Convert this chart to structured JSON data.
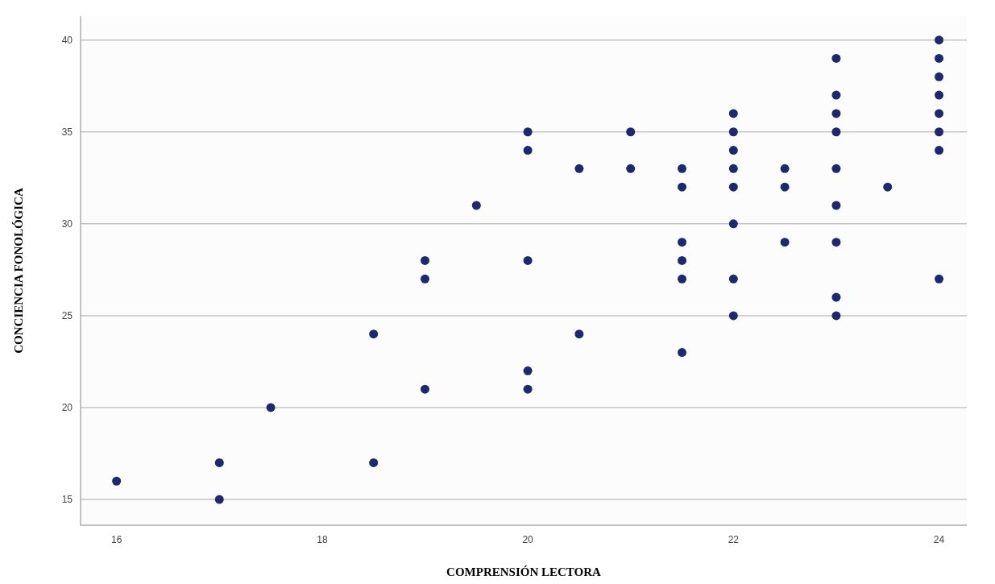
{
  "chart_data": {
    "type": "scatter",
    "xlabel": "COMPRENSIÓN LECTORA",
    "ylabel": "CONCIENCIA FONOLÓGICA",
    "x": [
      16,
      17,
      17,
      17.5,
      18.5,
      18.5,
      19,
      19,
      19,
      19.5,
      20,
      20,
      20,
      20,
      20,
      20.5,
      20.5,
      21,
      21,
      21.5,
      21.5,
      21.5,
      21.5,
      21.5,
      21.5,
      22,
      22,
      22,
      22,
      22,
      22,
      22,
      22,
      22.5,
      22.5,
      22.5,
      23,
      23,
      23,
      23,
      23,
      23,
      23,
      23,
      23,
      23.5,
      24,
      24,
      24,
      24,
      24,
      24,
      24,
      24
    ],
    "series": [
      {
        "color": "#1a2a6c",
        "values": [
          16,
          17,
          15,
          20,
          24,
          17,
          28,
          27,
          21,
          31,
          35,
          34,
          28,
          22,
          21,
          33,
          24,
          35,
          33,
          33,
          32,
          29,
          28,
          27,
          23,
          36,
          35,
          34,
          33,
          32,
          30,
          27,
          25,
          33,
          32,
          29,
          39,
          37,
          36,
          35,
          33,
          31,
          29,
          26,
          25,
          32,
          40,
          39,
          38,
          37,
          36,
          35,
          34,
          27
        ]
      }
    ],
    "marker": "circle",
    "grid": "y",
    "xlim": [
      15.65,
      24.27
    ],
    "xticks": [
      16,
      18,
      20,
      22,
      24
    ],
    "ylim": [
      13.6,
      41.3
    ],
    "yticks": [
      15,
      20,
      25,
      30,
      35,
      40
    ]
  }
}
